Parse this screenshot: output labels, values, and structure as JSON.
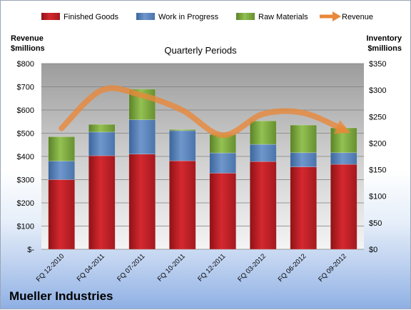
{
  "company": "Mueller Industries",
  "chart_data": {
    "type": "bar",
    "stacked": true,
    "title": "Quarterly Periods",
    "ylabel_left": "Revenue\n$millions",
    "ylabel_right": "Inventory\n$millions",
    "ylim_left": [
      0,
      800
    ],
    "ylim_right": [
      0,
      350
    ],
    "yticks_left": [
      "$-",
      "$100",
      "$200",
      "$300",
      "$400",
      "$500",
      "$600",
      "$700",
      "$800"
    ],
    "yticks_right": [
      "$0",
      "$50",
      "$100",
      "$150",
      "$200",
      "$250",
      "$300",
      "$350"
    ],
    "grid": true,
    "legend_position": "top",
    "categories": [
      "FQ 12-2010",
      "FQ 04-2011",
      "FQ 07-2011",
      "FQ 10-2011",
      "FQ 12-2011",
      "FQ 03-2012",
      "FQ 06-2012",
      "FQ 09-2012"
    ],
    "series": [
      {
        "name": "Finished Goods",
        "type": "bar",
        "axis": "left",
        "color": "#c0232a",
        "values": [
          300,
          403,
          410,
          381,
          328,
          378,
          355,
          366
        ]
      },
      {
        "name": "Work in Progress",
        "type": "bar",
        "axis": "left",
        "color": "#4f81bd",
        "values": [
          80,
          102,
          148,
          130,
          87,
          74,
          61,
          50
        ]
      },
      {
        "name": "Raw Materials",
        "type": "bar",
        "axis": "left",
        "color": "#77a63a",
        "values": [
          105,
          33,
          132,
          5,
          80,
          101,
          119,
          107
        ]
      },
      {
        "name": "Revenue",
        "type": "line",
        "axis": "right",
        "color": "#e8883a",
        "values": [
          228,
          300,
          290,
          262,
          215,
          255,
          257,
          225
        ]
      }
    ]
  }
}
